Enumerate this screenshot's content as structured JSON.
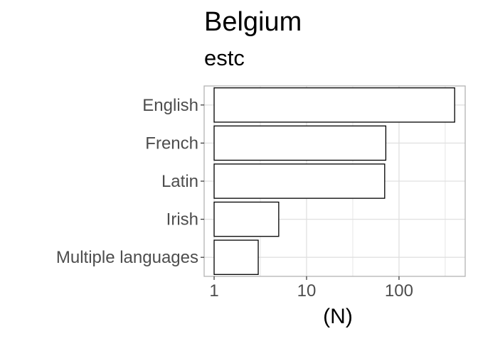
{
  "chart_data": {
    "type": "bar",
    "orientation": "horizontal",
    "title": "Belgium",
    "subtitle": "estc",
    "xlabel": "(N)",
    "ylabel": "",
    "x_scale": "log10",
    "xlim": [
      0.78,
      520
    ],
    "x_ticks": [
      1,
      10,
      100
    ],
    "x_tick_labels": [
      "1",
      "10",
      "100"
    ],
    "categories": [
      "English",
      "French",
      "Latin",
      "Irish",
      "Multiple languages"
    ],
    "values": [
      400,
      72,
      70,
      5,
      3
    ],
    "grid": true,
    "legend": "none",
    "colors": {
      "bar_fill": "#ffffff",
      "bar_stroke": "#000000",
      "grid": "#e0e0e0",
      "panel_border": "#b3b3b3"
    }
  }
}
